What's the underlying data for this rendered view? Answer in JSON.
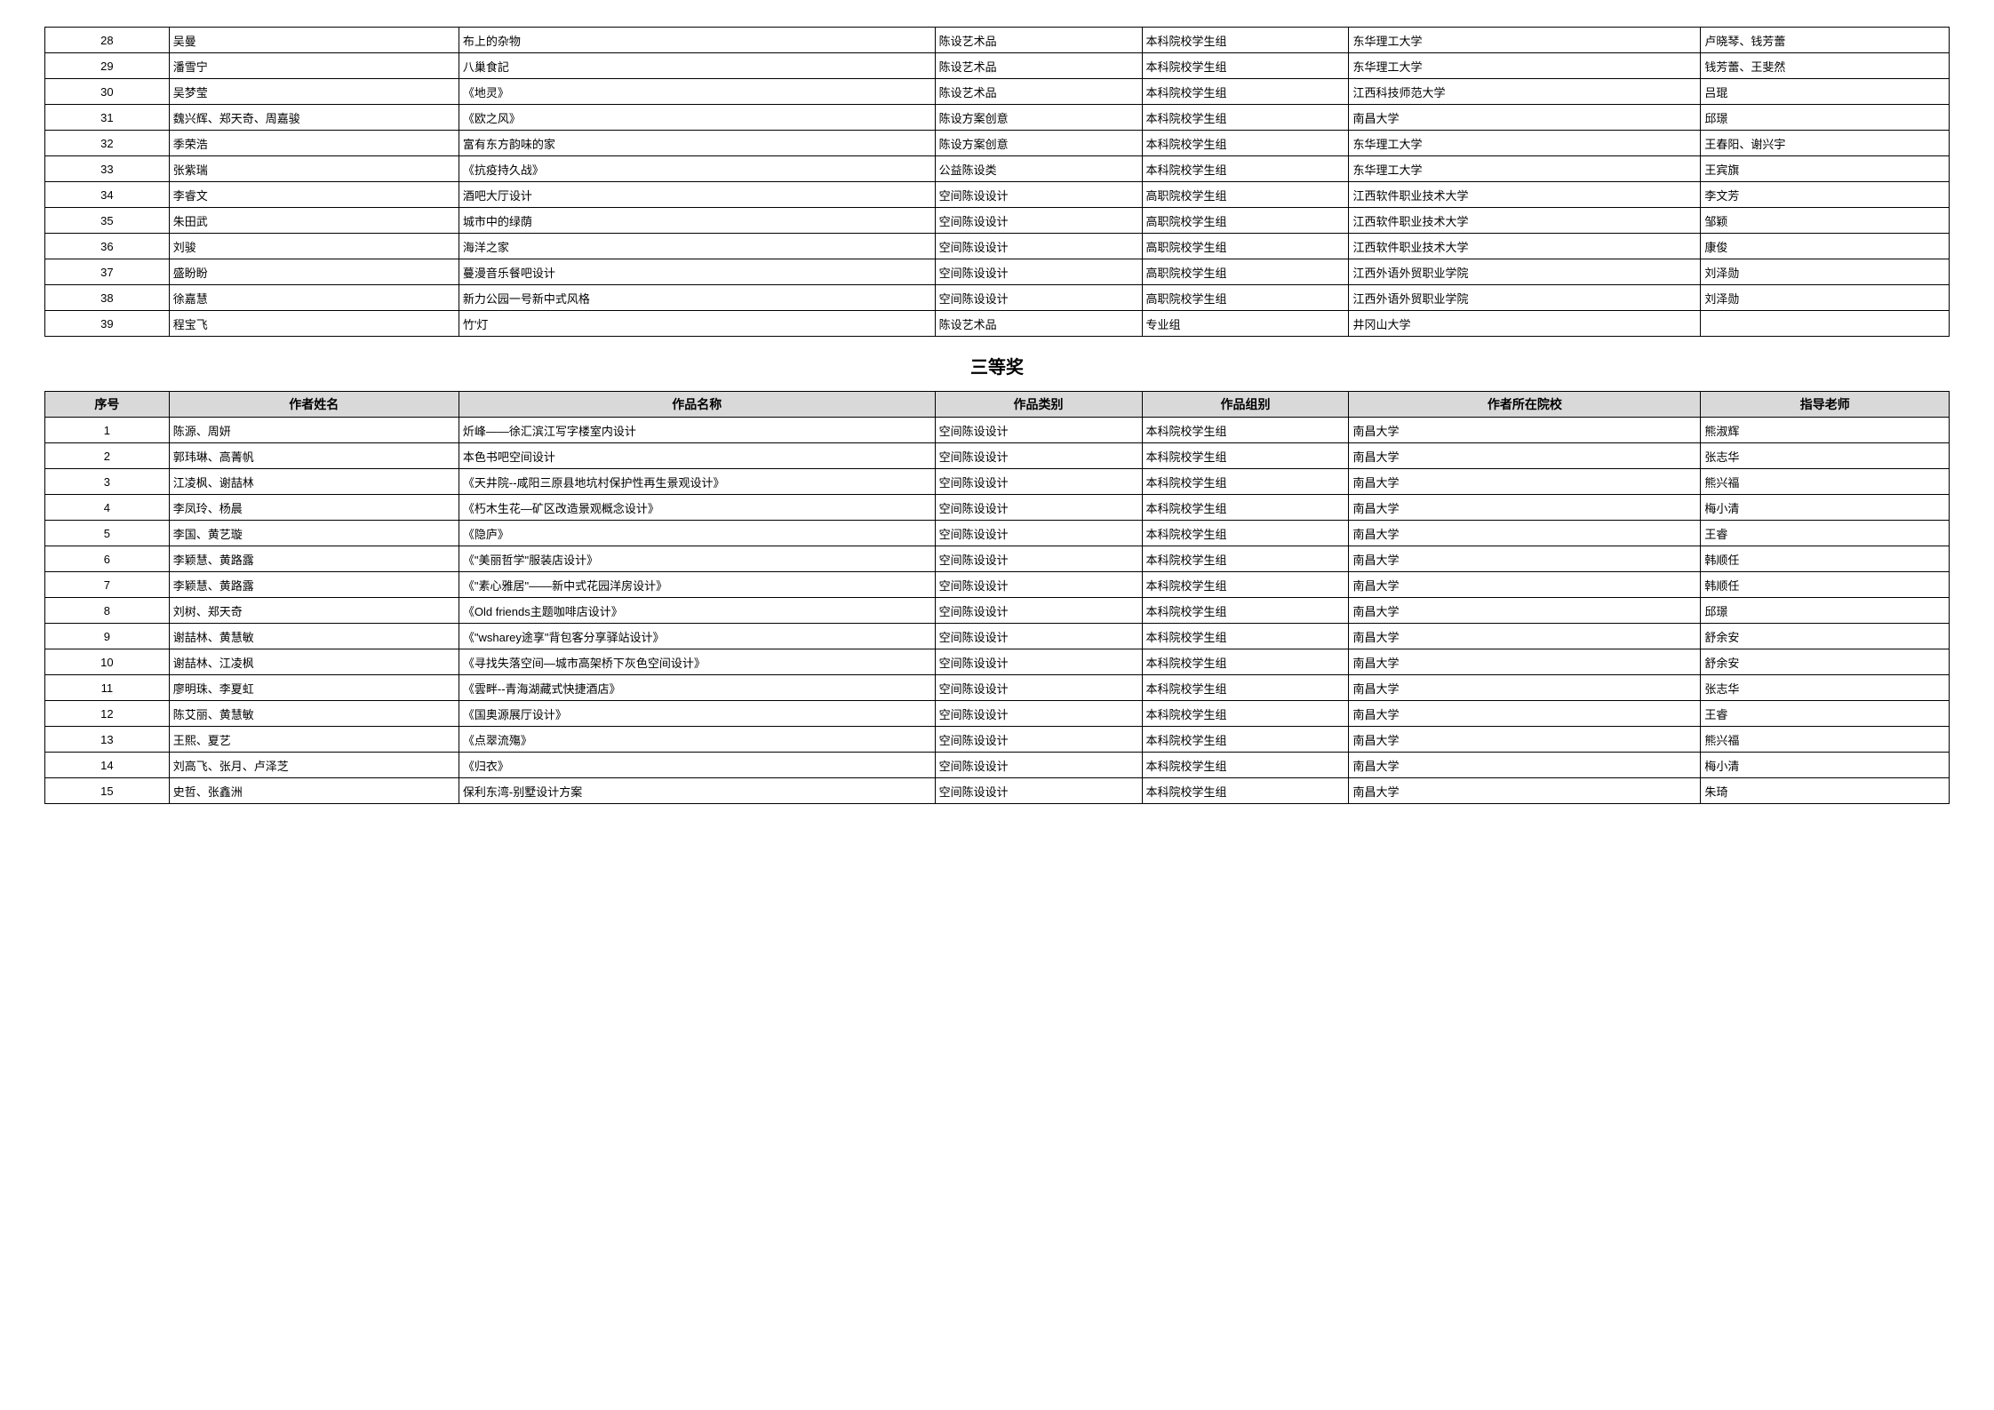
{
  "section_title": "三等奖",
  "headers": {
    "idx": "序号",
    "author": "作者姓名",
    "work": "作品名称",
    "cat": "作品类别",
    "grp": "作品组别",
    "school": "作者所在院校",
    "teacher": "指导老师"
  },
  "table1": [
    {
      "idx": "28",
      "author": "吴曼",
      "work": "布上的杂物",
      "cat": "陈设艺术品",
      "grp": "本科院校学生组",
      "school": "东华理工大学",
      "teacher": "卢晓琴、钱芳蕾"
    },
    {
      "idx": "29",
      "author": "潘雪宁",
      "work": "八巢食記",
      "cat": "陈设艺术品",
      "grp": "本科院校学生组",
      "school": "东华理工大学",
      "teacher": "钱芳蕾、王斐然"
    },
    {
      "idx": "30",
      "author": "吴梦莹",
      "work": "《地灵》",
      "cat": "陈设艺术品",
      "grp": "本科院校学生组",
      "school": "江西科技师范大学",
      "teacher": "吕琨"
    },
    {
      "idx": "31",
      "author": "魏兴辉、郑天奇、周嘉骏",
      "work": "《欧之风》",
      "cat": "陈设方案创意",
      "grp": "本科院校学生组",
      "school": "南昌大学",
      "teacher": "邱璟"
    },
    {
      "idx": "32",
      "author": "季荣浩",
      "work": "富有东方韵味的家",
      "cat": "陈设方案创意",
      "grp": "本科院校学生组",
      "school": "东华理工大学",
      "teacher": "王春阳、谢兴宇"
    },
    {
      "idx": "33",
      "author": "张紫瑞",
      "work": "《抗疫持久战》",
      "cat": "公益陈设类",
      "grp": "本科院校学生组",
      "school": "东华理工大学",
      "teacher": "王宾旗"
    },
    {
      "idx": "34",
      "author": "李睿文",
      "work": "酒吧大厅设计",
      "cat": "空间陈设设计",
      "grp": "高职院校学生组",
      "school": "江西软件职业技术大学",
      "teacher": "李文芳"
    },
    {
      "idx": "35",
      "author": "朱田武",
      "work": "城市中的绿荫",
      "cat": "空间陈设设计",
      "grp": "高职院校学生组",
      "school": "江西软件职业技术大学",
      "teacher": "邹颖"
    },
    {
      "idx": "36",
      "author": "刘骏",
      "work": "海洋之家",
      "cat": "空间陈设设计",
      "grp": "高职院校学生组",
      "school": "江西软件职业技术大学",
      "teacher": "康俊"
    },
    {
      "idx": "37",
      "author": "盛盼盼",
      "work": "蔓漫音乐餐吧设计",
      "cat": "空间陈设设计",
      "grp": "高职院校学生组",
      "school": "江西外语外贸职业学院",
      "teacher": "刘泽勋"
    },
    {
      "idx": "38",
      "author": "徐嘉慧",
      "work": "新力公园一号新中式风格",
      "cat": "空间陈设设计",
      "grp": "高职院校学生组",
      "school": "江西外语外贸职业学院",
      "teacher": "刘泽勋"
    },
    {
      "idx": "39",
      "author": "程宝飞",
      "work": "竹'灯",
      "cat": "陈设艺术品",
      "grp": "专业组",
      "school": "井冈山大学",
      "teacher": ""
    }
  ],
  "table2": [
    {
      "idx": "1",
      "author": "陈源、周妍",
      "work": "炘峰——徐汇滨江写字楼室内设计",
      "cat": "空间陈设设计",
      "grp": "本科院校学生组",
      "school": "南昌大学",
      "teacher": "熊淑辉"
    },
    {
      "idx": "2",
      "author": "郭玮琳、高菁帆",
      "work": "本色书吧空间设计",
      "cat": "空间陈设设计",
      "grp": "本科院校学生组",
      "school": "南昌大学",
      "teacher": "张志华"
    },
    {
      "idx": "3",
      "author": "江凌枫、谢喆林",
      "work": "《天井院--咸阳三原县地坑村保护性再生景观设计》",
      "cat": "空间陈设设计",
      "grp": "本科院校学生组",
      "school": "南昌大学",
      "teacher": "熊兴福"
    },
    {
      "idx": "4",
      "author": "李凤玲、杨晨",
      "work": "《朽木生花—矿区改造景观概念设计》",
      "cat": "空间陈设设计",
      "grp": "本科院校学生组",
      "school": "南昌大学",
      "teacher": "梅小清"
    },
    {
      "idx": "5",
      "author": "李国、黄艺璇",
      "work": "《隐庐》",
      "cat": "空间陈设设计",
      "grp": "本科院校学生组",
      "school": "南昌大学",
      "teacher": "王睿"
    },
    {
      "idx": "6",
      "author": "李颖慧、黄路露",
      "work": "《\"美丽哲学\"服装店设计》",
      "cat": "空间陈设设计",
      "grp": "本科院校学生组",
      "school": "南昌大学",
      "teacher": "韩顺任"
    },
    {
      "idx": "7",
      "author": "李颖慧、黄路露",
      "work": "《\"素心雅居\"——新中式花园洋房设计》",
      "cat": "空间陈设设计",
      "grp": "本科院校学生组",
      "school": "南昌大学",
      "teacher": "韩顺任"
    },
    {
      "idx": "8",
      "author": "刘树、郑天奇",
      "work": "《Old friends主题咖啡店设计》",
      "cat": "空间陈设设计",
      "grp": "本科院校学生组",
      "school": "南昌大学",
      "teacher": "邱璟"
    },
    {
      "idx": "9",
      "author": "谢喆林、黄慧敏",
      "work": "《\"wsharey途享\"背包客分享驿站设计》",
      "cat": "空间陈设设计",
      "grp": "本科院校学生组",
      "school": "南昌大学",
      "teacher": "舒余安"
    },
    {
      "idx": "10",
      "author": "谢喆林、江凌枫",
      "work": "《寻找失落空间—城市高架桥下灰色空间设计》",
      "cat": "空间陈设设计",
      "grp": "本科院校学生组",
      "school": "南昌大学",
      "teacher": "舒余安"
    },
    {
      "idx": "11",
      "author": "廖明珠、李夏虹",
      "work": "《雲畔--青海湖藏式快捷酒店》",
      "cat": "空间陈设设计",
      "grp": "本科院校学生组",
      "school": "南昌大学",
      "teacher": "张志华"
    },
    {
      "idx": "12",
      "author": "陈艾丽、黄慧敏",
      "work": "《国奥源展厅设计》",
      "cat": "空间陈设设计",
      "grp": "本科院校学生组",
      "school": "南昌大学",
      "teacher": "王睿"
    },
    {
      "idx": "13",
      "author": "王熙、夏艺",
      "work": "《点翠流殤》",
      "cat": "空间陈设设计",
      "grp": "本科院校学生组",
      "school": "南昌大学",
      "teacher": "熊兴福"
    },
    {
      "idx": "14",
      "author": "刘高飞、张月、卢泽芝",
      "work": "《归衣》",
      "cat": "空间陈设设计",
      "grp": "本科院校学生组",
      "school": "南昌大学",
      "teacher": "梅小清"
    },
    {
      "idx": "15",
      "author": "史哲、张鑫洲",
      "work": "保利东湾-别墅设计方案",
      "cat": "空间陈设设计",
      "grp": "本科院校学生组",
      "school": "南昌大学",
      "teacher": "朱琦"
    }
  ]
}
